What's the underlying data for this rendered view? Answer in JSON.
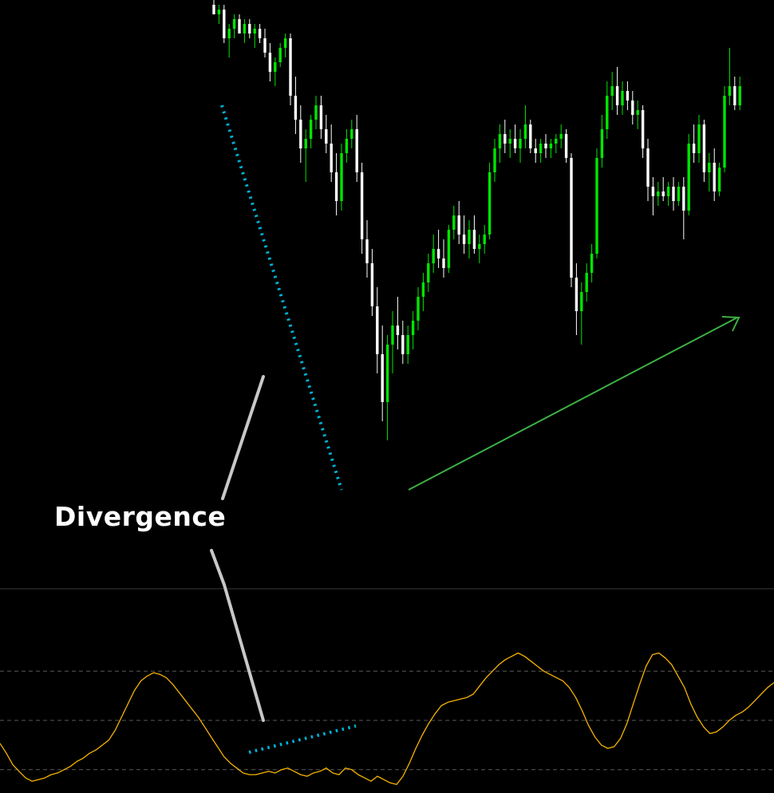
{
  "chart_data": [
    {
      "type": "candlestick",
      "panel": "price",
      "up_color": "#00e600",
      "down_color": "#ffffff",
      "background": "#000000",
      "price_range": [
        0,
        100
      ],
      "candles": [
        {
          "o": 99,
          "h": 100,
          "l": 97,
          "c": 97
        },
        {
          "o": 97,
          "h": 99,
          "l": 95,
          "c": 98
        },
        {
          "o": 98,
          "h": 99,
          "l": 91,
          "c": 92
        },
        {
          "o": 92,
          "h": 95,
          "l": 88,
          "c": 94
        },
        {
          "o": 94,
          "h": 97,
          "l": 92,
          "c": 96
        },
        {
          "o": 96,
          "h": 97,
          "l": 93,
          "c": 93
        },
        {
          "o": 93,
          "h": 96,
          "l": 91,
          "c": 95
        },
        {
          "o": 95,
          "h": 96,
          "l": 92,
          "c": 93
        },
        {
          "o": 93,
          "h": 95,
          "l": 90,
          "c": 94
        },
        {
          "o": 94,
          "h": 95,
          "l": 91,
          "c": 92
        },
        {
          "o": 92,
          "h": 94,
          "l": 88,
          "c": 89
        },
        {
          "o": 89,
          "h": 91,
          "l": 83,
          "c": 85
        },
        {
          "o": 85,
          "h": 88,
          "l": 82,
          "c": 87
        },
        {
          "o": 87,
          "h": 91,
          "l": 86,
          "c": 90
        },
        {
          "o": 90,
          "h": 93,
          "l": 88,
          "c": 92
        },
        {
          "o": 92,
          "h": 93,
          "l": 78,
          "c": 80
        },
        {
          "o": 80,
          "h": 84,
          "l": 72,
          "c": 75
        },
        {
          "o": 75,
          "h": 78,
          "l": 66,
          "c": 69
        },
        {
          "o": 69,
          "h": 73,
          "l": 62,
          "c": 71
        },
        {
          "o": 71,
          "h": 76,
          "l": 69,
          "c": 75
        },
        {
          "o": 75,
          "h": 80,
          "l": 73,
          "c": 78
        },
        {
          "o": 78,
          "h": 80,
          "l": 71,
          "c": 73
        },
        {
          "o": 73,
          "h": 76,
          "l": 68,
          "c": 70
        },
        {
          "o": 70,
          "h": 74,
          "l": 62,
          "c": 64
        },
        {
          "o": 64,
          "h": 68,
          "l": 55,
          "c": 58
        },
        {
          "o": 58,
          "h": 70,
          "l": 56,
          "c": 68
        },
        {
          "o": 68,
          "h": 73,
          "l": 66,
          "c": 71
        },
        {
          "o": 71,
          "h": 75,
          "l": 69,
          "c": 73
        },
        {
          "o": 73,
          "h": 76,
          "l": 62,
          "c": 64
        },
        {
          "o": 64,
          "h": 66,
          "l": 47,
          "c": 50
        },
        {
          "o": 50,
          "h": 54,
          "l": 42,
          "c": 45
        },
        {
          "o": 45,
          "h": 48,
          "l": 34,
          "c": 36
        },
        {
          "o": 36,
          "h": 40,
          "l": 22,
          "c": 26
        },
        {
          "o": 26,
          "h": 32,
          "l": 12,
          "c": 16
        },
        {
          "o": 16,
          "h": 30,
          "l": 8,
          "c": 28
        },
        {
          "o": 28,
          "h": 35,
          "l": 22,
          "c": 32
        },
        {
          "o": 32,
          "h": 38,
          "l": 27,
          "c": 30
        },
        {
          "o": 30,
          "h": 33,
          "l": 24,
          "c": 26
        },
        {
          "o": 26,
          "h": 32,
          "l": 24,
          "c": 30
        },
        {
          "o": 30,
          "h": 35,
          "l": 27,
          "c": 33
        },
        {
          "o": 33,
          "h": 40,
          "l": 31,
          "c": 38
        },
        {
          "o": 38,
          "h": 43,
          "l": 35,
          "c": 41
        },
        {
          "o": 41,
          "h": 47,
          "l": 39,
          "c": 45
        },
        {
          "o": 45,
          "h": 51,
          "l": 43,
          "c": 48
        },
        {
          "o": 48,
          "h": 52,
          "l": 44,
          "c": 46
        },
        {
          "o": 46,
          "h": 50,
          "l": 42,
          "c": 44
        },
        {
          "o": 44,
          "h": 53,
          "l": 43,
          "c": 52
        },
        {
          "o": 52,
          "h": 57,
          "l": 50,
          "c": 55
        },
        {
          "o": 55,
          "h": 58,
          "l": 49,
          "c": 51
        },
        {
          "o": 51,
          "h": 55,
          "l": 47,
          "c": 49
        },
        {
          "o": 49,
          "h": 54,
          "l": 46,
          "c": 52
        },
        {
          "o": 52,
          "h": 55,
          "l": 47,
          "c": 48
        },
        {
          "o": 48,
          "h": 51,
          "l": 45,
          "c": 49
        },
        {
          "o": 49,
          "h": 53,
          "l": 47,
          "c": 51
        },
        {
          "o": 51,
          "h": 66,
          "l": 50,
          "c": 64
        },
        {
          "o": 64,
          "h": 71,
          "l": 62,
          "c": 69
        },
        {
          "o": 69,
          "h": 74,
          "l": 66,
          "c": 72
        },
        {
          "o": 72,
          "h": 75,
          "l": 68,
          "c": 70
        },
        {
          "o": 70,
          "h": 73,
          "l": 67,
          "c": 71
        },
        {
          "o": 71,
          "h": 74,
          "l": 68,
          "c": 69
        },
        {
          "o": 69,
          "h": 73,
          "l": 66,
          "c": 71
        },
        {
          "o": 71,
          "h": 78,
          "l": 69,
          "c": 74
        },
        {
          "o": 74,
          "h": 75,
          "l": 68,
          "c": 69
        },
        {
          "o": 69,
          "h": 71,
          "l": 66,
          "c": 68
        },
        {
          "o": 68,
          "h": 71,
          "l": 66,
          "c": 70
        },
        {
          "o": 70,
          "h": 72,
          "l": 67,
          "c": 69
        },
        {
          "o": 69,
          "h": 71,
          "l": 67,
          "c": 70
        },
        {
          "o": 70,
          "h": 72,
          "l": 68,
          "c": 71
        },
        {
          "o": 71,
          "h": 74,
          "l": 69,
          "c": 72
        },
        {
          "o": 72,
          "h": 73,
          "l": 66,
          "c": 67
        },
        {
          "o": 67,
          "h": 68,
          "l": 40,
          "c": 42
        },
        {
          "o": 42,
          "h": 45,
          "l": 30,
          "c": 35
        },
        {
          "o": 35,
          "h": 41,
          "l": 28,
          "c": 39
        },
        {
          "o": 39,
          "h": 45,
          "l": 37,
          "c": 43
        },
        {
          "o": 43,
          "h": 49,
          "l": 41,
          "c": 47
        },
        {
          "o": 47,
          "h": 69,
          "l": 46,
          "c": 67
        },
        {
          "o": 67,
          "h": 76,
          "l": 65,
          "c": 73
        },
        {
          "o": 73,
          "h": 83,
          "l": 71,
          "c": 80
        },
        {
          "o": 80,
          "h": 85,
          "l": 77,
          "c": 82
        },
        {
          "o": 82,
          "h": 86,
          "l": 76,
          "c": 78
        },
        {
          "o": 78,
          "h": 83,
          "l": 76,
          "c": 81
        },
        {
          "o": 81,
          "h": 83,
          "l": 77,
          "c": 79
        },
        {
          "o": 79,
          "h": 81,
          "l": 74,
          "c": 76
        },
        {
          "o": 76,
          "h": 79,
          "l": 73,
          "c": 77
        },
        {
          "o": 77,
          "h": 78,
          "l": 67,
          "c": 69
        },
        {
          "o": 69,
          "h": 71,
          "l": 58,
          "c": 61
        },
        {
          "o": 61,
          "h": 63,
          "l": 55,
          "c": 59
        },
        {
          "o": 59,
          "h": 62,
          "l": 57,
          "c": 60
        },
        {
          "o": 60,
          "h": 63,
          "l": 58,
          "c": 59
        },
        {
          "o": 59,
          "h": 62,
          "l": 57,
          "c": 61
        },
        {
          "o": 61,
          "h": 63,
          "l": 56,
          "c": 58
        },
        {
          "o": 58,
          "h": 62,
          "l": 57,
          "c": 61
        },
        {
          "o": 61,
          "h": 63,
          "l": 50,
          "c": 56
        },
        {
          "o": 56,
          "h": 72,
          "l": 55,
          "c": 70
        },
        {
          "o": 70,
          "h": 74,
          "l": 66,
          "c": 68
        },
        {
          "o": 68,
          "h": 76,
          "l": 66,
          "c": 74
        },
        {
          "o": 74,
          "h": 75,
          "l": 62,
          "c": 64
        },
        {
          "o": 64,
          "h": 68,
          "l": 60,
          "c": 66
        },
        {
          "o": 66,
          "h": 69,
          "l": 58,
          "c": 60
        },
        {
          "o": 60,
          "h": 66,
          "l": 59,
          "c": 65
        },
        {
          "o": 65,
          "h": 82,
          "l": 64,
          "c": 80
        },
        {
          "o": 80,
          "h": 90,
          "l": 78,
          "c": 82
        },
        {
          "o": 82,
          "h": 84,
          "l": 77,
          "c": 78
        },
        {
          "o": 78,
          "h": 84,
          "l": 77,
          "c": 82
        }
      ]
    },
    {
      "type": "line",
      "panel": "oscillator",
      "series": [
        {
          "color": "#f5b301",
          "values": [
            36,
            30,
            23,
            19,
            15,
            13,
            14,
            15,
            17,
            18,
            20,
            22,
            25,
            27,
            30,
            32,
            35,
            38,
            44,
            52,
            60,
            68,
            74,
            77,
            79,
            78,
            76,
            72,
            67,
            62,
            57,
            52,
            46,
            40,
            34,
            28,
            24,
            21,
            18,
            17,
            17,
            18,
            19,
            18,
            20,
            21,
            19,
            17,
            16,
            18,
            19,
            21,
            18,
            17,
            21,
            20,
            17,
            15,
            13,
            16,
            14,
            12,
            11,
            16,
            24,
            33,
            41,
            48,
            54,
            59,
            61,
            62,
            63,
            64,
            66,
            71,
            76,
            80,
            84,
            87,
            89,
            91,
            89,
            86,
            83,
            80,
            78,
            76,
            74,
            70,
            64,
            56,
            47,
            40,
            35,
            33,
            34,
            39,
            48,
            60,
            72,
            83,
            90,
            91,
            88,
            84,
            77,
            70,
            60,
            52,
            46,
            42,
            43,
            46,
            50,
            53,
            55,
            58,
            62,
            66,
            70,
            73
          ]
        }
      ],
      "reference_levels": [
        80,
        50,
        20
      ]
    }
  ],
  "annotations": {
    "label_text": "Divergence",
    "price_trendline_color": "#00b4d8",
    "trend_arrow_color": "#3cb043",
    "pointer_line_color": "#c8c8c8",
    "oscillator_trendline_color": "#00b4d8"
  }
}
